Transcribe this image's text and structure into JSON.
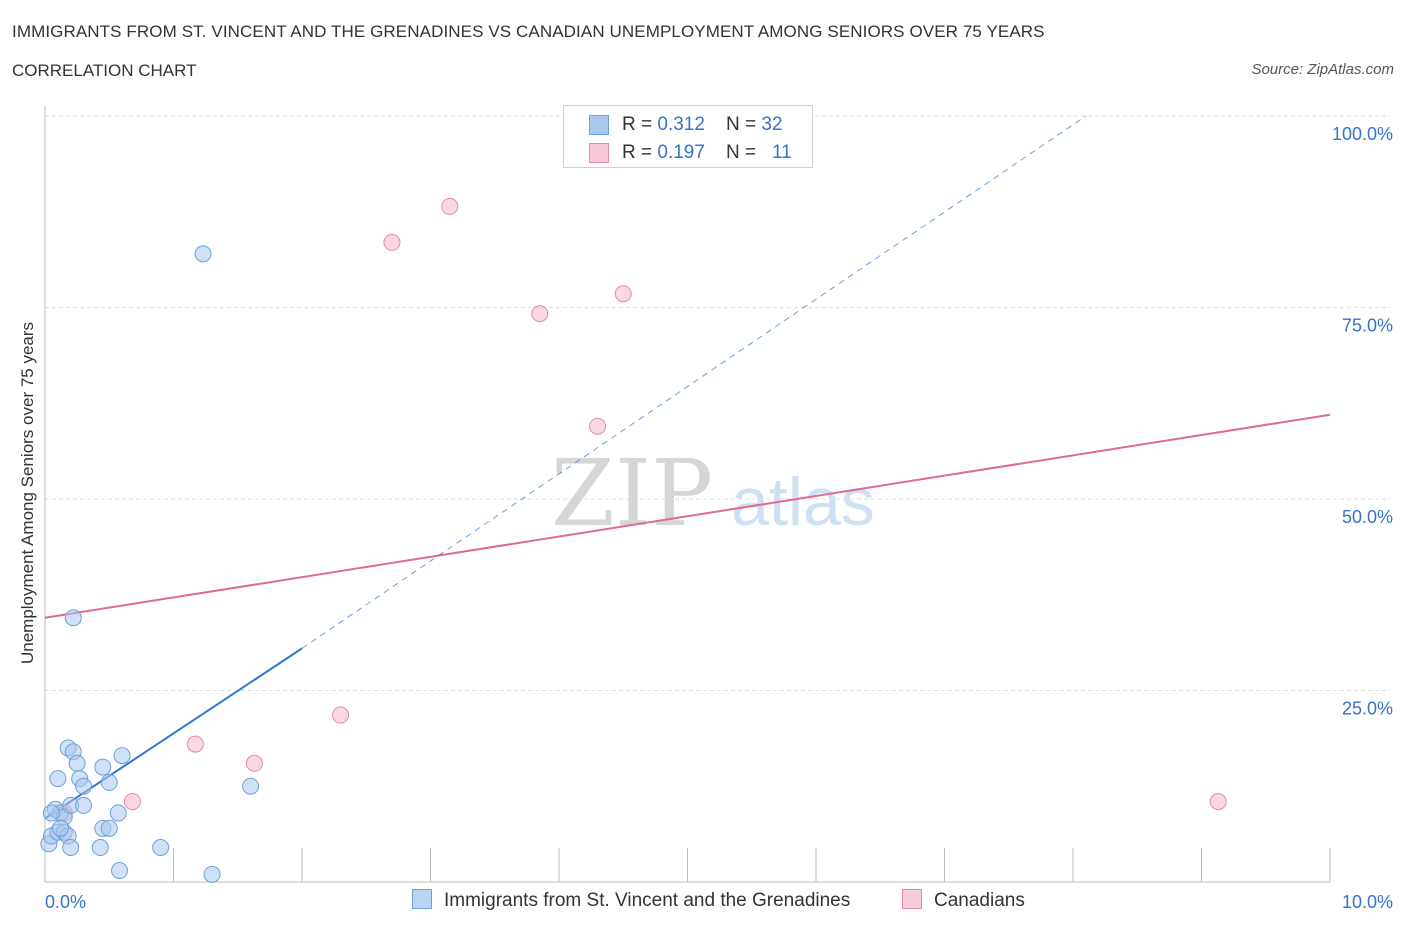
{
  "title": "IMMIGRANTS FROM ST. VINCENT AND THE GRENADINES VS CANADIAN UNEMPLOYMENT AMONG SENIORS OVER 75 YEARS",
  "subtitle": "CORRELATION CHART",
  "source": "Source: ZipAtlas.com",
  "watermark": {
    "zip": "ZIP",
    "atlas": "atlas"
  },
  "legend": {
    "series1": {
      "r_label": "R = ",
      "r_value": "0.312",
      "n_label": "N = ",
      "n_value": "32"
    },
    "series2": {
      "r_label": "R = ",
      "r_value": "0.197",
      "n_label": "N = ",
      "n_value": "11"
    }
  },
  "colors": {
    "blue_fill": "#a9c8f0",
    "blue_stroke": "#6f9fd8",
    "blue_line": "#2f78d0",
    "pink_fill": "#f6b8cb",
    "pink_stroke": "#e58aa8",
    "pink_line": "#e06a93",
    "axis_text": "#3574c8",
    "grid": "#dddddd"
  },
  "chart_data": {
    "type": "scatter",
    "xlabel": "",
    "ylabel": "Unemployment Among Seniors over 75 years",
    "xlim": [
      0,
      10
    ],
    "ylim": [
      0,
      100
    ],
    "x_tick_labels": [
      "0.0%",
      "10.0%"
    ],
    "y_ticks": [
      25,
      50,
      75,
      100
    ],
    "y_tick_labels": [
      "25.0%",
      "50.0%",
      "75.0%",
      "100.0%"
    ],
    "grid": "horizontal dashed",
    "legend_position": "top-center",
    "series": [
      {
        "name": "Immigrants from St. Vincent and the Grenadines",
        "color": "#a9c8f0",
        "points": [
          [
            0.03,
            5.0
          ],
          [
            0.05,
            6.0
          ],
          [
            0.08,
            9.5
          ],
          [
            0.1,
            6.5
          ],
          [
            0.1,
            13.5
          ],
          [
            0.12,
            9.0
          ],
          [
            0.15,
            8.5
          ],
          [
            0.15,
            6.5
          ],
          [
            0.18,
            17.5
          ],
          [
            0.18,
            6.0
          ],
          [
            0.2,
            10.0
          ],
          [
            0.2,
            4.5
          ],
          [
            0.22,
            17.0
          ],
          [
            0.22,
            34.5
          ],
          [
            0.25,
            15.5
          ],
          [
            0.27,
            13.5
          ],
          [
            0.3,
            10.0
          ],
          [
            0.3,
            12.5
          ],
          [
            0.43,
            4.5
          ],
          [
            0.45,
            15.0
          ],
          [
            0.45,
            7.0
          ],
          [
            0.5,
            13.0
          ],
          [
            0.5,
            7.0
          ],
          [
            0.57,
            9.0
          ],
          [
            0.58,
            1.5
          ],
          [
            0.6,
            16.5
          ],
          [
            0.9,
            4.5
          ],
          [
            1.23,
            82.0
          ],
          [
            1.3,
            1.0
          ],
          [
            1.6,
            12.5
          ],
          [
            0.05,
            9.0
          ],
          [
            0.12,
            7.0
          ]
        ],
        "trend": {
          "x": [
            0.0,
            2.0
          ],
          "y": [
            8.3,
            30.5
          ]
        },
        "trend_extension": {
          "x": [
            2.0,
            8.1
          ],
          "y": [
            30.5,
            100.0
          ]
        }
      },
      {
        "name": "Canadians",
        "color": "#f6b8cb",
        "points": [
          [
            0.15,
            9.0
          ],
          [
            0.68,
            10.5
          ],
          [
            1.17,
            18.0
          ],
          [
            1.63,
            15.5
          ],
          [
            2.3,
            21.8
          ],
          [
            2.7,
            83.5
          ],
          [
            3.15,
            88.2
          ],
          [
            3.85,
            74.2
          ],
          [
            4.3,
            59.5
          ],
          [
            4.5,
            76.8
          ],
          [
            9.13,
            10.5
          ]
        ],
        "trend": {
          "x": [
            0.0,
            10.0
          ],
          "y": [
            34.5,
            61.0
          ]
        }
      }
    ]
  }
}
